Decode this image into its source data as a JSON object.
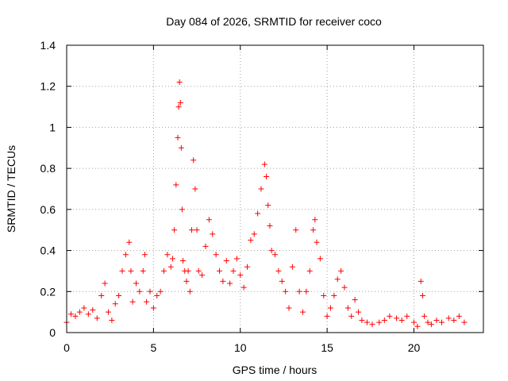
{
  "chart_data": {
    "type": "scatter",
    "title": "Day 084 of 2026, SRMTID for receiver coco",
    "xlabel": "GPS time / hours",
    "ylabel": "SRMTID / TECUs",
    "xlim": [
      0,
      24
    ],
    "ylim": [
      0,
      1.4
    ],
    "x_ticks": [
      0,
      5,
      10,
      15,
      20
    ],
    "x_tick_labels": [
      "0",
      "5",
      "10",
      "15",
      "20"
    ],
    "y_ticks": [
      0,
      0.2,
      0.4,
      0.6,
      0.8,
      1.0,
      1.2,
      1.4
    ],
    "y_tick_labels": [
      "0",
      "0.2",
      "0.4",
      "0.6",
      "0.8",
      "1",
      "1.2",
      "1.4"
    ],
    "grid": true,
    "marker": "plus",
    "series": [
      {
        "name": "SRMTID",
        "color": "#ff0000",
        "x": [
          0.0,
          0.25,
          0.5,
          0.75,
          1.0,
          1.25,
          1.5,
          1.75,
          2.0,
          2.2,
          2.4,
          2.6,
          2.8,
          3.0,
          3.2,
          3.4,
          3.6,
          3.7,
          3.8,
          4.0,
          4.2,
          4.4,
          4.5,
          4.6,
          4.8,
          5.0,
          5.2,
          5.4,
          5.6,
          5.8,
          6.0,
          6.1,
          6.2,
          6.3,
          6.4,
          6.45,
          6.5,
          6.55,
          6.6,
          6.65,
          6.7,
          6.8,
          6.9,
          7.0,
          7.1,
          7.2,
          7.3,
          7.4,
          7.5,
          7.6,
          7.8,
          8.0,
          8.2,
          8.4,
          8.6,
          8.8,
          9.0,
          9.2,
          9.4,
          9.6,
          9.8,
          10.0,
          10.2,
          10.4,
          10.6,
          10.8,
          11.0,
          11.2,
          11.4,
          11.5,
          11.6,
          11.7,
          11.8,
          12.0,
          12.2,
          12.4,
          12.6,
          12.8,
          13.0,
          13.2,
          13.4,
          13.6,
          13.8,
          14.0,
          14.2,
          14.3,
          14.4,
          14.6,
          14.8,
          15.0,
          15.2,
          15.4,
          15.6,
          15.8,
          16.0,
          16.2,
          16.4,
          16.6,
          16.8,
          17.0,
          17.3,
          17.6,
          18.0,
          18.3,
          18.6,
          19.0,
          19.3,
          19.6,
          20.0,
          20.2,
          20.4,
          20.5,
          20.6,
          20.8,
          21.0,
          21.3,
          21.6,
          22.0,
          22.3,
          22.6,
          22.9
        ],
        "y": [
          0.05,
          0.09,
          0.08,
          0.1,
          0.12,
          0.09,
          0.11,
          0.07,
          0.18,
          0.24,
          0.1,
          0.06,
          0.14,
          0.18,
          0.3,
          0.38,
          0.44,
          0.3,
          0.15,
          0.24,
          0.2,
          0.3,
          0.38,
          0.15,
          0.2,
          0.12,
          0.18,
          0.2,
          0.3,
          0.38,
          0.32,
          0.36,
          0.5,
          0.72,
          0.95,
          1.1,
          1.22,
          1.12,
          0.9,
          0.6,
          0.35,
          0.3,
          0.25,
          0.3,
          0.2,
          0.5,
          0.84,
          0.7,
          0.5,
          0.3,
          0.28,
          0.42,
          0.55,
          0.48,
          0.38,
          0.3,
          0.25,
          0.35,
          0.24,
          0.3,
          0.36,
          0.28,
          0.22,
          0.32,
          0.45,
          0.48,
          0.58,
          0.7,
          0.82,
          0.76,
          0.62,
          0.52,
          0.4,
          0.38,
          0.3,
          0.25,
          0.2,
          0.12,
          0.32,
          0.5,
          0.2,
          0.1,
          0.2,
          0.3,
          0.5,
          0.55,
          0.44,
          0.36,
          0.18,
          0.08,
          0.12,
          0.18,
          0.26,
          0.3,
          0.22,
          0.12,
          0.08,
          0.16,
          0.1,
          0.06,
          0.05,
          0.04,
          0.05,
          0.06,
          0.08,
          0.07,
          0.06,
          0.08,
          0.05,
          0.03,
          0.25,
          0.18,
          0.08,
          0.05,
          0.04,
          0.06,
          0.05,
          0.07,
          0.06,
          0.08,
          0.05
        ]
      }
    ]
  }
}
